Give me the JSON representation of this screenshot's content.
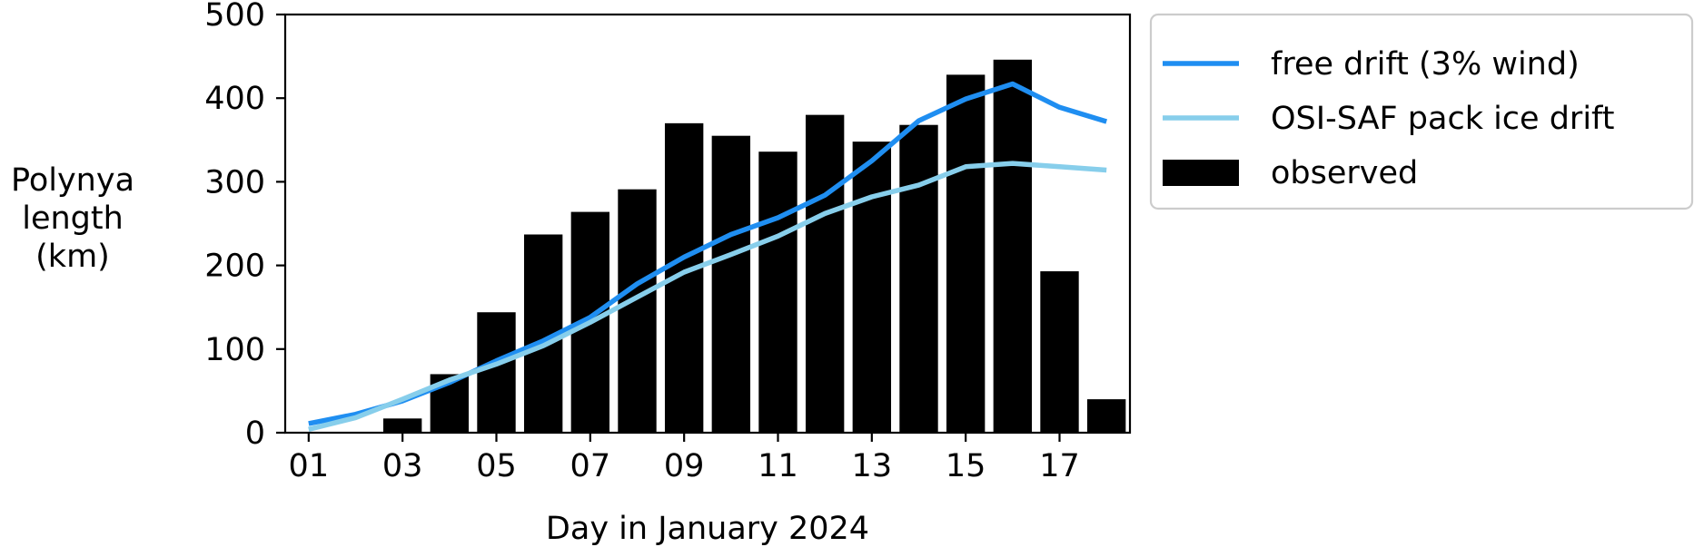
{
  "chart_data": {
    "type": "bar",
    "xlabel": "Day in January 2024",
    "ylabel_lines": [
      "Polynya",
      "length",
      "(km)"
    ],
    "ylim": [
      0,
      500
    ],
    "xlim": [
      0.5,
      18.5
    ],
    "y_ticks": [
      0,
      100,
      200,
      300,
      400,
      500
    ],
    "x_ticks": [
      {
        "day": 1,
        "label": "01"
      },
      {
        "day": 3,
        "label": "03"
      },
      {
        "day": 5,
        "label": "05"
      },
      {
        "day": 7,
        "label": "07"
      },
      {
        "day": 9,
        "label": "09"
      },
      {
        "day": 11,
        "label": "11"
      },
      {
        "day": 13,
        "label": "13"
      },
      {
        "day": 15,
        "label": "15"
      },
      {
        "day": 17,
        "label": "17"
      }
    ],
    "days": [
      1,
      2,
      3,
      4,
      5,
      6,
      7,
      8,
      9,
      10,
      11,
      12,
      13,
      14,
      15,
      16,
      17,
      18
    ],
    "series": [
      {
        "name": "observed",
        "kind": "bar",
        "color": "#000000",
        "values": [
          0,
          0,
          17,
          70,
          144,
          237,
          264,
          291,
          370,
          355,
          336,
          380,
          348,
          368,
          428,
          446,
          193,
          40
        ]
      },
      {
        "name": "free drift (3% wind)",
        "kind": "line",
        "color": "#1f8ef1",
        "values": [
          11,
          22,
          38,
          60,
          86,
          110,
          138,
          178,
          210,
          237,
          257,
          284,
          325,
          373,
          399,
          417,
          389,
          372
        ]
      },
      {
        "name": "OSI-SAF pack ice drift",
        "kind": "line",
        "color": "#87ceeb",
        "values": [
          4,
          18,
          40,
          63,
          82,
          104,
          132,
          162,
          192,
          213,
          235,
          262,
          282,
          296,
          318,
          322,
          318,
          314
        ]
      }
    ],
    "legend": {
      "position": "right-outside",
      "entries": [
        "free drift (3% wind)",
        "OSI-SAF pack ice drift",
        "observed"
      ]
    }
  }
}
